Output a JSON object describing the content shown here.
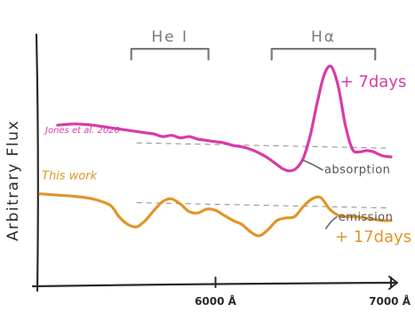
{
  "chart_data": {
    "type": "line",
    "style": "hand-drawn sketch",
    "xlabel": "",
    "ylabel": "Arbitrary Flux",
    "xticks": [
      {
        "value": 6000,
        "label": "6000 Å"
      },
      {
        "value": 7000,
        "label": "7000 Å"
      }
    ],
    "xlim": [
      5000,
      7000
    ],
    "ylim": [
      0,
      10
    ],
    "grid": false,
    "line_annotations": [
      {
        "text": "He I",
        "x_range": [
          5520,
          5960
        ],
        "y": 9.3
      },
      {
        "text": "Hα",
        "x_range": [
          6320,
          6910
        ],
        "y": 9.3
      }
    ],
    "annotations": [
      {
        "text": "absorption",
        "x": 6620,
        "y": 4.4
      },
      {
        "text": "emission",
        "x": 6700,
        "y": 2.55
      }
    ],
    "series": [
      {
        "name": "Jones et al. 2020",
        "label_right": "+ 7days",
        "color": "#d83ba8",
        "continuum": 5.5,
        "x": [
          5100,
          5200,
          5300,
          5400,
          5500,
          5600,
          5650,
          5700,
          5750,
          5800,
          5850,
          5900,
          5950,
          6000,
          6050,
          6100,
          6150,
          6200,
          6250,
          6300,
          6340,
          6380,
          6420,
          6460,
          6500,
          6540,
          6580,
          6620,
          6660,
          6700,
          6740,
          6780,
          6820,
          6860,
          6900,
          6950,
          7000
        ],
        "y": [
          6.3,
          6.35,
          6.3,
          6.2,
          6.1,
          6.0,
          5.95,
          5.85,
          5.9,
          5.8,
          5.85,
          5.75,
          5.7,
          5.65,
          5.6,
          5.5,
          5.45,
          5.35,
          5.2,
          5.0,
          4.8,
          4.6,
          4.5,
          4.6,
          5.0,
          5.9,
          7.2,
          8.3,
          8.6,
          7.8,
          6.3,
          5.35,
          5.25,
          5.3,
          5.25,
          5.1,
          5.05
        ]
      },
      {
        "name": "This work",
        "label_right": "+ 17days",
        "color": "#e0962a",
        "continuum": 3.15,
        "x": [
          5000,
          5100,
          5200,
          5300,
          5400,
          5450,
          5500,
          5550,
          5600,
          5650,
          5700,
          5750,
          5800,
          5850,
          5900,
          5950,
          6000,
          6050,
          6100,
          6150,
          6200,
          6250,
          6300,
          6350,
          6400,
          6450,
          6500,
          6550,
          6600,
          6650,
          6700,
          6750,
          6800,
          6850,
          6900,
          6950,
          7000
        ],
        "y": [
          3.6,
          3.55,
          3.5,
          3.4,
          3.15,
          2.7,
          2.4,
          2.3,
          2.55,
          2.95,
          3.3,
          3.4,
          3.2,
          2.9,
          2.85,
          3.0,
          2.95,
          2.75,
          2.55,
          2.4,
          2.1,
          1.95,
          2.2,
          2.55,
          2.65,
          2.7,
          3.1,
          3.4,
          3.45,
          3.0,
          2.75,
          2.7,
          2.7,
          2.65,
          2.6,
          2.55,
          2.55
        ]
      }
    ]
  }
}
